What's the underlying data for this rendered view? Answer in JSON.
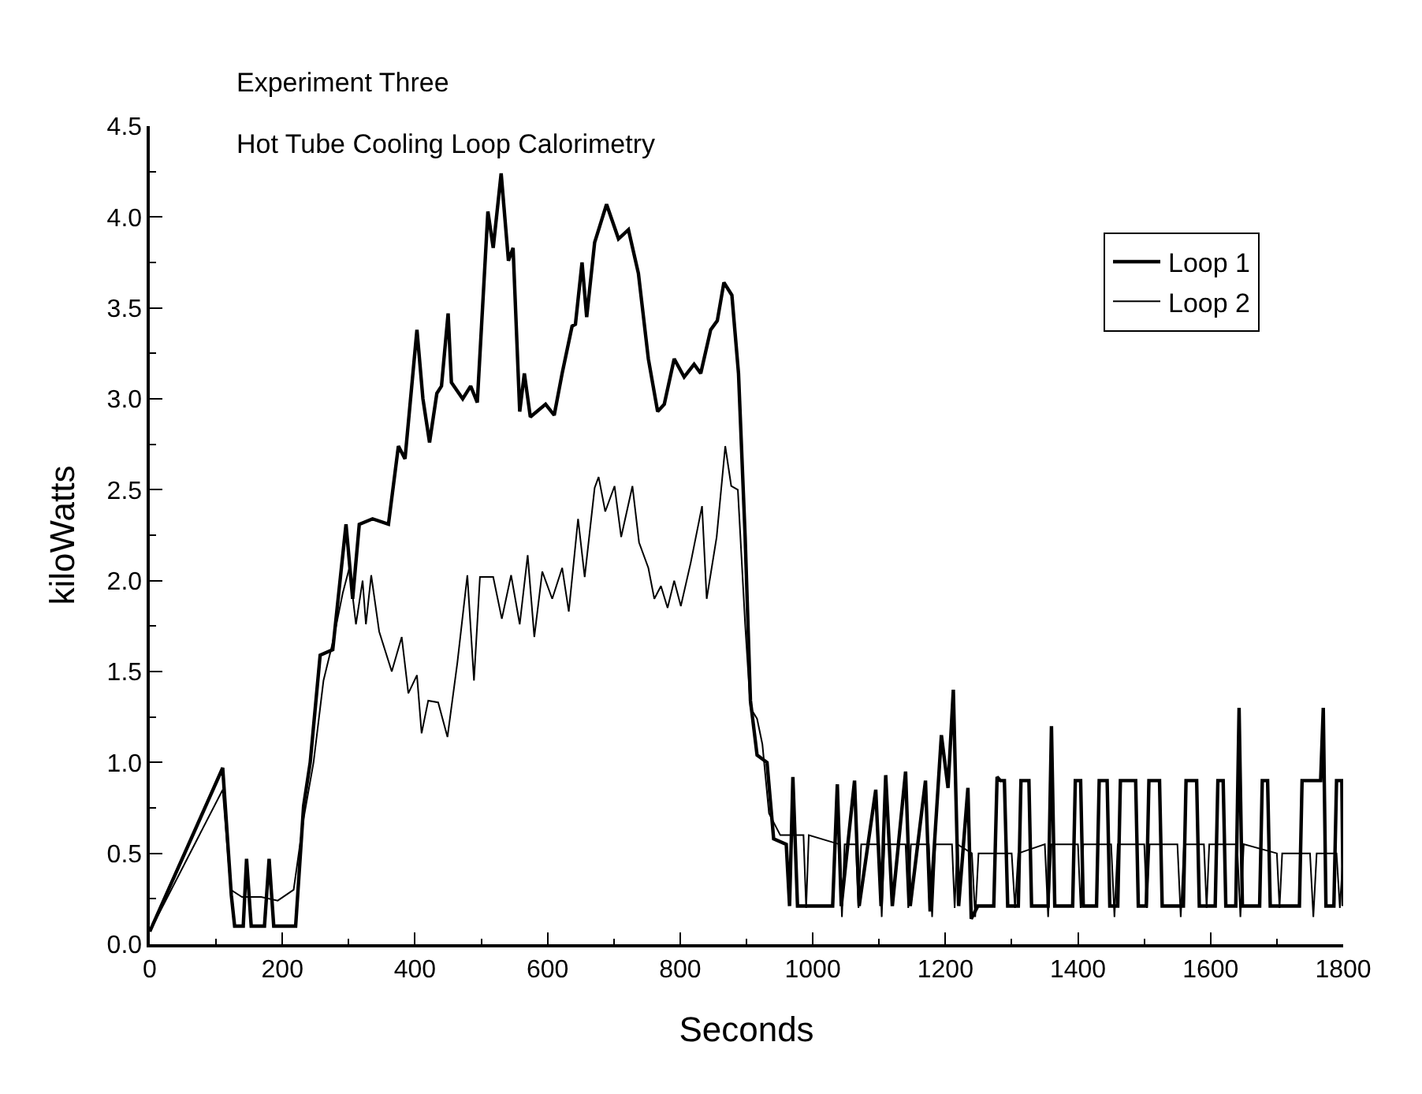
{
  "chart_data": {
    "type": "line",
    "title": "Experiment Three",
    "subtitle": "Hot Tube Cooling Loop Calorimetry",
    "xlabel": "Seconds",
    "ylabel": "kiloWatts",
    "xlim": [
      0,
      1800
    ],
    "ylim": [
      0,
      4.5
    ],
    "xticks": [
      0,
      {
        "value": 100,
        "label": null
      },
      200,
      {
        "value": 300,
        "label": null
      },
      400,
      {
        "value": 500,
        "label": null
      },
      600,
      {
        "value": 700,
        "label": null
      },
      800,
      {
        "value": 900,
        "label": null
      },
      1000,
      {
        "value": 1100,
        "label": null
      },
      1200,
      {
        "value": 1300,
        "label": null
      },
      1400,
      {
        "value": 1500,
        "label": null
      },
      1600,
      {
        "value": 1700,
        "label": null
      },
      1800
    ],
    "yticks": [
      {
        "value": 0,
        "label": "0.0"
      },
      {
        "value": 0.25,
        "label": null
      },
      {
        "value": 0.5,
        "label": "0.5"
      },
      {
        "value": 0.75,
        "label": null
      },
      {
        "value": 1,
        "label": "1.0"
      },
      {
        "value": 1.25,
        "label": null
      },
      {
        "value": 1.5,
        "label": "1.5"
      },
      {
        "value": 1.75,
        "label": null
      },
      {
        "value": 2,
        "label": "2.0"
      },
      {
        "value": 2.25,
        "label": null
      },
      {
        "value": 2.5,
        "label": "2.5"
      },
      {
        "value": 2.75,
        "label": null
      },
      {
        "value": 3,
        "label": "3.0"
      },
      {
        "value": 3.25,
        "label": null
      },
      {
        "value": 3.5,
        "label": "3.5"
      },
      {
        "value": 3.75,
        "label": null
      },
      {
        "value": 4,
        "label": "4.0"
      },
      {
        "value": 4.25,
        "label": null
      },
      {
        "value": 4.5,
        "label": "4.5"
      }
    ],
    "grid": false,
    "legend": "top right",
    "marker": "none",
    "line_style": "solid",
    "series": [
      {
        "name": "Loop 1",
        "color": "#000000",
        "x": [
          0,
          110,
          123,
          128,
          141,
          146,
          153,
          173,
          180,
          187,
          220,
          232,
          242,
          257,
          276,
          296,
          306,
          316,
          336,
          360,
          375,
          385,
          403,
          412,
          422,
          433,
          440,
          450,
          455,
          472,
          484,
          494,
          510,
          518,
          530,
          541,
          548,
          558,
          565,
          574,
          597,
          610,
          622,
          637,
          642,
          652,
          659,
          671,
          689,
          707,
          722,
          737,
          752,
          766,
          776,
          791,
          806,
          821,
          831,
          846,
          856,
          866,
          878,
          888,
          898,
          906,
          916,
          931,
          941,
          960,
          965,
          970,
          977,
          1030,
          1037,
          1043,
          1063,
          1070,
          1095,
          1103,
          1110,
          1120,
          1140,
          1147,
          1170,
          1177,
          1194,
          1204,
          1212,
          1220,
          1234,
          1239,
          1249,
          1273,
          1278,
          1283,
          1289,
          1294,
          1310,
          1314,
          1326,
          1330,
          1355,
          1360,
          1365,
          1392,
          1396,
          1404,
          1408,
          1428,
          1432,
          1444,
          1448,
          1460,
          1464,
          1487,
          1491,
          1503,
          1507,
          1523,
          1527,
          1559,
          1563,
          1579,
          1583,
          1607,
          1611,
          1619,
          1623,
          1638,
          1643,
          1648,
          1674,
          1678,
          1686,
          1690,
          1734,
          1738,
          1762,
          1766,
          1770,
          1774,
          1786,
          1790,
          1798,
          1800
        ],
        "values": [
          0.07,
          0.97,
          0.27,
          0.1,
          0.1,
          0.47,
          0.1,
          0.1,
          0.47,
          0.1,
          0.1,
          0.76,
          1.0,
          1.59,
          1.62,
          2.31,
          1.9,
          2.31,
          2.34,
          2.31,
          2.74,
          2.67,
          3.38,
          3.0,
          2.76,
          3.03,
          3.07,
          3.47,
          3.09,
          3.0,
          3.07,
          2.98,
          4.03,
          3.83,
          4.24,
          3.76,
          3.83,
          2.93,
          3.14,
          2.9,
          2.97,
          2.91,
          3.14,
          3.4,
          3.41,
          3.75,
          3.45,
          3.86,
          4.07,
          3.88,
          3.93,
          3.69,
          3.22,
          2.93,
          2.97,
          3.22,
          3.12,
          3.19,
          3.14,
          3.38,
          3.43,
          3.64,
          3.57,
          3.14,
          2.24,
          1.34,
          1.04,
          1.0,
          0.58,
          0.55,
          0.21,
          0.92,
          0.21,
          0.21,
          0.88,
          0.21,
          0.9,
          0.21,
          0.85,
          0.21,
          0.93,
          0.21,
          0.95,
          0.21,
          0.9,
          0.18,
          1.15,
          0.86,
          1.4,
          0.21,
          0.86,
          0.14,
          0.21,
          0.21,
          0.92,
          0.9,
          0.9,
          0.21,
          0.21,
          0.9,
          0.9,
          0.21,
          0.21,
          1.2,
          0.21,
          0.21,
          0.9,
          0.9,
          0.21,
          0.21,
          0.9,
          0.9,
          0.21,
          0.21,
          0.9,
          0.9,
          0.21,
          0.21,
          0.9,
          0.9,
          0.21,
          0.21,
          0.9,
          0.9,
          0.21,
          0.21,
          0.9,
          0.9,
          0.21,
          0.21,
          1.3,
          0.21,
          0.21,
          0.9,
          0.9,
          0.21,
          0.21,
          0.9,
          0.9,
          0.9,
          1.3,
          0.21,
          0.21,
          0.9,
          0.9,
          0.21
        ]
      },
      {
        "name": "Loop 2",
        "color": "#000000",
        "x": [
          0,
          110,
          122,
          139,
          168,
          193,
          217,
          232,
          247,
          262,
          276,
          291,
          301,
          311,
          321,
          326,
          334,
          346,
          365,
          380,
          390,
          403,
          410,
          420,
          435,
          449,
          464,
          479,
          489,
          498,
          518,
          531,
          545,
          558,
          570,
          580,
          592,
          607,
          622,
          632,
          646,
          656,
          671,
          677,
          687,
          701,
          711,
          728,
          738,
          752,
          761,
          771,
          781,
          791,
          801,
          816,
          833,
          840,
          855,
          868,
          877,
          887,
          898,
          906,
          916,
          924,
          934,
          951,
          986,
          990,
          994,
          1040,
          1044,
          1048,
          1065,
          1069,
          1073,
          1100,
          1104,
          1108,
          1140,
          1144,
          1148,
          1175,
          1180,
          1185,
          1210,
          1214,
          1218,
          1240,
          1245,
          1250,
          1300,
          1305,
          1310,
          1350,
          1355,
          1360,
          1400,
          1404,
          1408,
          1450,
          1455,
          1460,
          1500,
          1504,
          1508,
          1550,
          1555,
          1560,
          1590,
          1594,
          1598,
          1640,
          1645,
          1650,
          1700,
          1704,
          1708,
          1750,
          1755,
          1760,
          1790,
          1795,
          1800
        ],
        "values": [
          0.07,
          0.85,
          0.3,
          0.26,
          0.26,
          0.24,
          0.3,
          0.69,
          1.0,
          1.45,
          1.66,
          1.93,
          2.07,
          1.76,
          2.0,
          1.76,
          2.03,
          1.72,
          1.5,
          1.69,
          1.38,
          1.48,
          1.16,
          1.34,
          1.33,
          1.14,
          1.55,
          2.03,
          1.45,
          2.02,
          2.02,
          1.79,
          2.03,
          1.76,
          2.14,
          1.69,
          2.05,
          1.9,
          2.07,
          1.83,
          2.34,
          2.02,
          2.51,
          2.57,
          2.38,
          2.52,
          2.24,
          2.52,
          2.21,
          2.07,
          1.9,
          1.97,
          1.85,
          2.0,
          1.86,
          2.1,
          2.41,
          1.9,
          2.24,
          2.74,
          2.52,
          2.5,
          1.76,
          1.3,
          1.24,
          1.1,
          0.72,
          0.6,
          0.6,
          0.2,
          0.6,
          0.55,
          0.15,
          0.55,
          0.55,
          0.2,
          0.55,
          0.55,
          0.15,
          0.55,
          0.55,
          0.2,
          0.55,
          0.55,
          0.15,
          0.55,
          0.55,
          0.2,
          0.55,
          0.5,
          0.15,
          0.5,
          0.5,
          0.2,
          0.5,
          0.55,
          0.15,
          0.55,
          0.55,
          0.2,
          0.55,
          0.55,
          0.15,
          0.55,
          0.55,
          0.2,
          0.55,
          0.55,
          0.15,
          0.55,
          0.55,
          0.2,
          0.55,
          0.55,
          0.15,
          0.55,
          0.5,
          0.2,
          0.5,
          0.5,
          0.15,
          0.5,
          0.5,
          0.2,
          0.5
        ]
      }
    ]
  }
}
